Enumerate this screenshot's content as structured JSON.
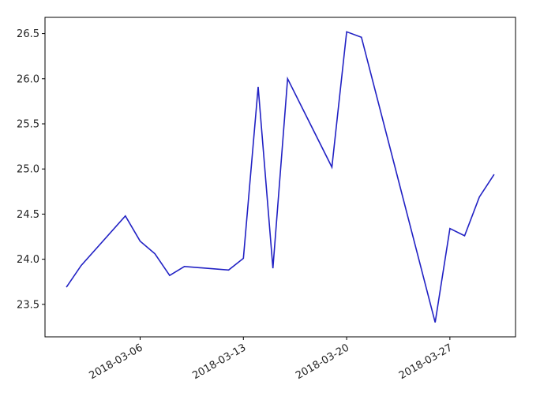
{
  "chart_data": {
    "type": "line",
    "x": [
      "2018-03-01",
      "2018-03-02",
      "2018-03-05",
      "2018-03-06",
      "2018-03-07",
      "2018-03-08",
      "2018-03-09",
      "2018-03-12",
      "2018-03-13",
      "2018-03-14",
      "2018-03-15",
      "2018-03-16",
      "2018-03-19",
      "2018-03-20",
      "2018-03-21",
      "2018-03-26",
      "2018-03-27",
      "2018-03-28",
      "2018-03-29",
      "2018-03-30"
    ],
    "series": [
      {
        "color": "#2121c4",
        "values": [
          23.69,
          23.93,
          24.48,
          24.2,
          24.06,
          23.82,
          23.92,
          23.88,
          24.01,
          25.91,
          23.9,
          26.0,
          25.02,
          26.52,
          26.46,
          23.3,
          24.34,
          24.26,
          24.69,
          24.94
        ]
      }
    ],
    "xlim": [
      "2018-02-27T13:12Z",
      "2018-03-31T10:48Z"
    ],
    "xticks": [
      "2018-03-06",
      "2018-03-13",
      "2018-03-20",
      "2018-03-27"
    ],
    "ylim": [
      23.14,
      26.68
    ],
    "yticks": [
      23.5,
      24.0,
      24.5,
      25.0,
      25.5,
      26.0,
      26.5
    ],
    "yticks_fmt": null
  }
}
